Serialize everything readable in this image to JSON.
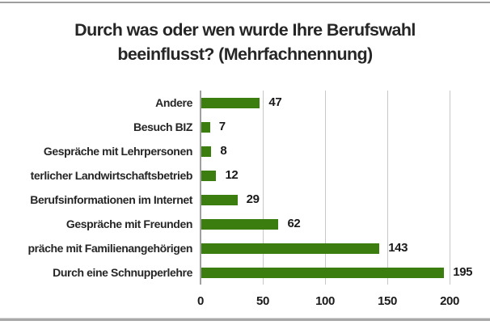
{
  "title": {
    "line1": "Durch was oder wen wurde Ihre Berufswahl",
    "line2": "beeinflusst? (Mehrfachnennung)"
  },
  "colors": {
    "bar": "#3c7d10",
    "text": "#262626",
    "grid": "#c8c8c8",
    "axis": "#a0a0a0",
    "border": "#9e9e9e"
  },
  "chart_data": {
    "type": "bar",
    "orientation": "horizontal",
    "title": "Durch was oder wen wurde Ihre Berufswahl beeinflusst? (Mehrfachnennung)",
    "categories": [
      "Andere",
      "Besuch BIZ",
      "Gespräche mit Lehrpersonen",
      "terlicher Landwirtschaftsbetrieb",
      "Berufsinformationen im Internet",
      "Gespräche mit Freunden",
      "präche mit Familienangehörigen",
      "Durch eine Schnupperlehre"
    ],
    "values": [
      47,
      7,
      8,
      12,
      29,
      62,
      143,
      195
    ],
    "value_labels": [
      47,
      7,
      8,
      12,
      29,
      62,
      143,
      195
    ],
    "xlim": [
      0,
      200
    ],
    "xticks": [
      0,
      50,
      100,
      150,
      200
    ],
    "xlabel": "",
    "ylabel": "",
    "grid": true,
    "legend": false,
    "bar_color": "#3c7d10"
  }
}
